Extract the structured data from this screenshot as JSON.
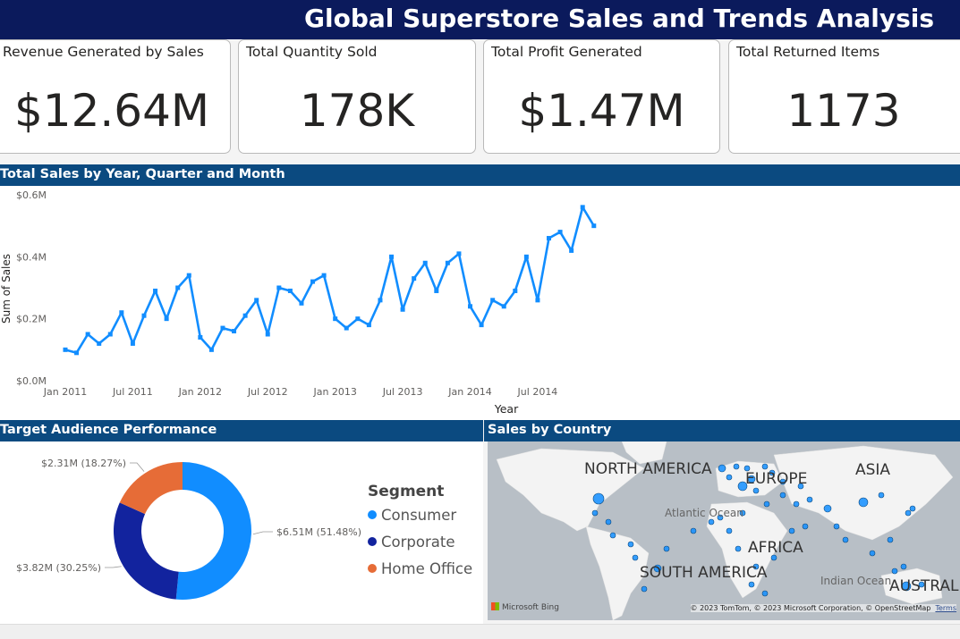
{
  "title": "Global Superstore Sales and Trends Analysis",
  "kpis": [
    {
      "label": "Revenue Generated by Sales",
      "value": "$12.64M"
    },
    {
      "label": "Total Quantity Sold",
      "value": "178K"
    },
    {
      "label": "Total Profit Generated",
      "value": "$1.47M"
    },
    {
      "label": "Total Returned Items",
      "value": "1173"
    }
  ],
  "sections": {
    "line": "Total Sales by Year, Quarter and Month",
    "donut": "Target Audience Performance",
    "map": "Sales by Country"
  },
  "chart_data": [
    {
      "type": "line",
      "title": "Total Sales by Year, Quarter and Month",
      "xlabel": "Year",
      "ylabel": "Sum of Sales",
      "ylim": [
        0,
        0.6
      ],
      "y_ticks": [
        "$0.0M",
        "$0.2M",
        "$0.4M",
        "$0.6M"
      ],
      "x_ticks": [
        "Jan 2011",
        "Jul 2011",
        "Jan 2012",
        "Jul 2012",
        "Jan 2013",
        "Jul 2013",
        "Jan 2014",
        "Jul 2014"
      ],
      "color": "#118dff",
      "x_start": "2011-01",
      "values": [
        0.1,
        0.09,
        0.15,
        0.12,
        0.15,
        0.22,
        0.12,
        0.21,
        0.29,
        0.2,
        0.3,
        0.34,
        0.14,
        0.1,
        0.17,
        0.16,
        0.21,
        0.26,
        0.15,
        0.3,
        0.29,
        0.25,
        0.32,
        0.34,
        0.2,
        0.17,
        0.2,
        0.18,
        0.26,
        0.4,
        0.23,
        0.33,
        0.38,
        0.29,
        0.38,
        0.41,
        0.24,
        0.18,
        0.26,
        0.24,
        0.29,
        0.4,
        0.26,
        0.46,
        0.48,
        0.42,
        0.56,
        0.5
      ]
    },
    {
      "type": "pie",
      "title": "Target Audience Performance",
      "legend_title": "Segment",
      "legend_position": "right",
      "slices": [
        {
          "name": "Consumer",
          "value": 6.51,
          "label": "$6.51M (51.48%)",
          "color": "#118dff"
        },
        {
          "name": "Corporate",
          "value": 3.82,
          "label": "$3.82M (30.25%)",
          "color": "#12239e"
        },
        {
          "name": "Home Office",
          "value": 2.31,
          "label": "$2.31M (18.27%)",
          "color": "#e66c37"
        }
      ]
    }
  ],
  "map": {
    "continent_labels": [
      "NORTH AMERICA",
      "EUROPE",
      "ASIA",
      "AFRICA",
      "SOUTH AMERICA",
      "AUSTRAL"
    ],
    "ocean_labels": [
      "Atlantic Ocean",
      "Indian Ocean"
    ],
    "brand": "Microsoft Bing",
    "attribution": "© 2023 TomTom, © 2023 Microsoft Corporation, © OpenStreetMap",
    "terms": "Terms"
  }
}
